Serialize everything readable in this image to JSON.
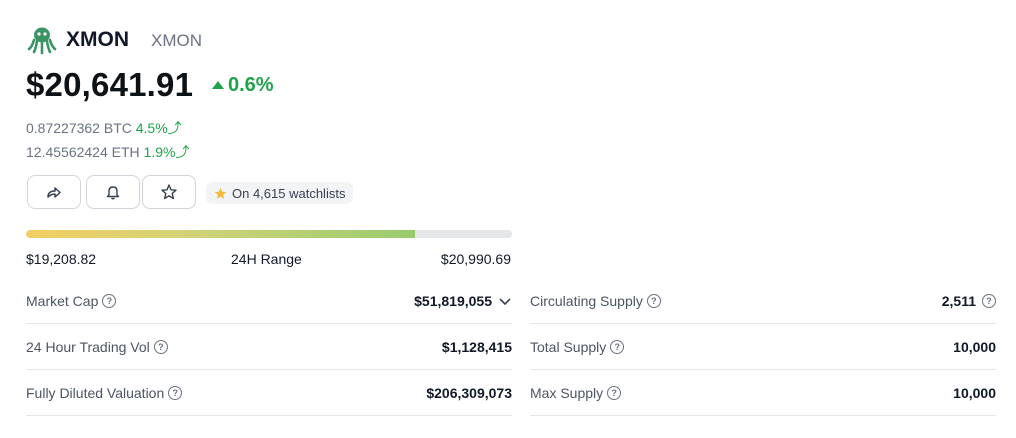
{
  "header": {
    "name": "XMON",
    "symbol": "XMON"
  },
  "price": {
    "value": "$20,641.91",
    "change": "0.6%",
    "btc_value": "0.87227362 BTC",
    "btc_change": "4.5%",
    "eth_value": "12.45562424 ETH",
    "eth_change": "1.9%"
  },
  "actions": {
    "share_icon": "share-icon",
    "alert_icon": "bell-icon",
    "watchlist_icon": "star-icon",
    "watchlists_text": "On 4,615 watchlists"
  },
  "range": {
    "low": "$19,208.82",
    "label": "24H Range",
    "high": "$20,990.69",
    "position_fraction": 0.8
  },
  "stats_left": [
    {
      "label": "Market Cap",
      "value": "$51,819,055",
      "expandable": true
    },
    {
      "label": "24 Hour Trading Vol",
      "value": "$1,128,415"
    },
    {
      "label": "Fully Diluted Valuation",
      "value": "$206,309,073"
    }
  ],
  "stats_right": [
    {
      "label": "Circulating Supply",
      "value": "2,511",
      "info": true
    },
    {
      "label": "Total Supply",
      "value": "10,000"
    },
    {
      "label": "Max Supply",
      "value": "10,000"
    }
  ],
  "colors": {
    "positive": "#1fa34a",
    "bar_start": "#f3cf63",
    "bar_end": "#99cc6f",
    "logo": "#2e8b57"
  }
}
